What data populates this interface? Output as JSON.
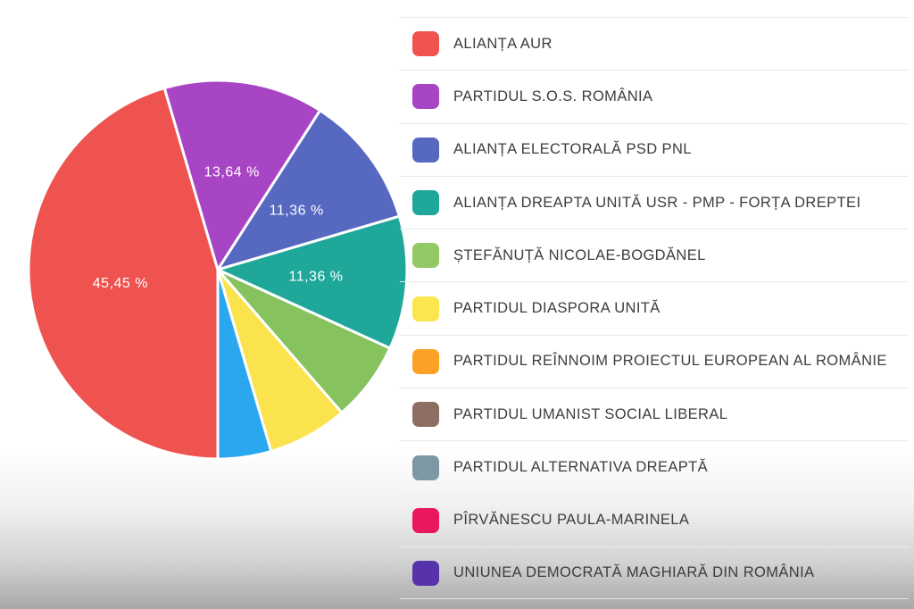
{
  "chart_data": {
    "type": "pie",
    "start_angle_deg": 180,
    "clockwise": true,
    "label_radius_ratio": 0.52,
    "slices": [
      {
        "name": "ALIANȚA AUR",
        "value_pct": 45.45,
        "display_label": "45,45 %",
        "color": "#ef5350"
      },
      {
        "name": "PARTIDUL S.O.S. ROMÂNIA",
        "value_pct": 13.64,
        "display_label": "13,64 %",
        "color": "#a845c4"
      },
      {
        "name": "ALIANȚA ELECTORALĂ PSD PNL",
        "value_pct": 11.36,
        "display_label": "11,36 %",
        "color": "#5768c0"
      },
      {
        "name": "ALIANȚA DREAPTA UNITĂ USR - PMP - FORȚA DREPTEI",
        "value_pct": 11.36,
        "display_label": "11,36 %",
        "color": "#1fa79a"
      },
      {
        "name": "ȘTEFĂNUȚĂ NICOLAE-BOGDĂNEL",
        "value_pct": 6.82,
        "display_label": "",
        "color": "#86c35f"
      },
      {
        "name": "PARTIDUL DIASPORA UNITĂ",
        "value_pct": 6.82,
        "display_label": "",
        "color": "#fbe34e"
      },
      {
        "name": "",
        "value_pct": 4.55,
        "display_label": "",
        "color": "#2aa7ef"
      }
    ]
  },
  "legend": {
    "items": [
      {
        "label": "ALIANȚA AUR",
        "color": "#ef5350"
      },
      {
        "label": "PARTIDUL S.O.S. ROMÂNIA",
        "color": "#a845c4"
      },
      {
        "label": "ALIANȚA ELECTORALĂ PSD PNL",
        "color": "#5768c0"
      },
      {
        "label": "ALIANȚA DREAPTA UNITĂ USR - PMP - FORȚA DREPTEI",
        "color": "#1fa79a"
      },
      {
        "label": "ȘTEFĂNUȚĂ NICOLAE-BOGDĂNEL",
        "color": "#93c964"
      },
      {
        "label": "PARTIDUL DIASPORA UNITĂ",
        "color": "#fce64f"
      },
      {
        "label": "PARTIDUL REÎNNOIM PROIECTUL EUROPEAN AL ROMÂNIE",
        "color": "#fba226"
      },
      {
        "label": "PARTIDUL UMANIST SOCIAL LIBERAL",
        "color": "#8d6e63"
      },
      {
        "label": "PARTIDUL ALTERNATIVA DREAPTĂ",
        "color": "#7e97a4"
      },
      {
        "label": "PÎRVĂNESCU PAULA-MARINELA",
        "color": "#e8175f"
      },
      {
        "label": "UNIUNEA DEMOCRATĂ MAGHIARĂ DIN ROMÂNIA",
        "color": "#5733ab"
      }
    ]
  }
}
